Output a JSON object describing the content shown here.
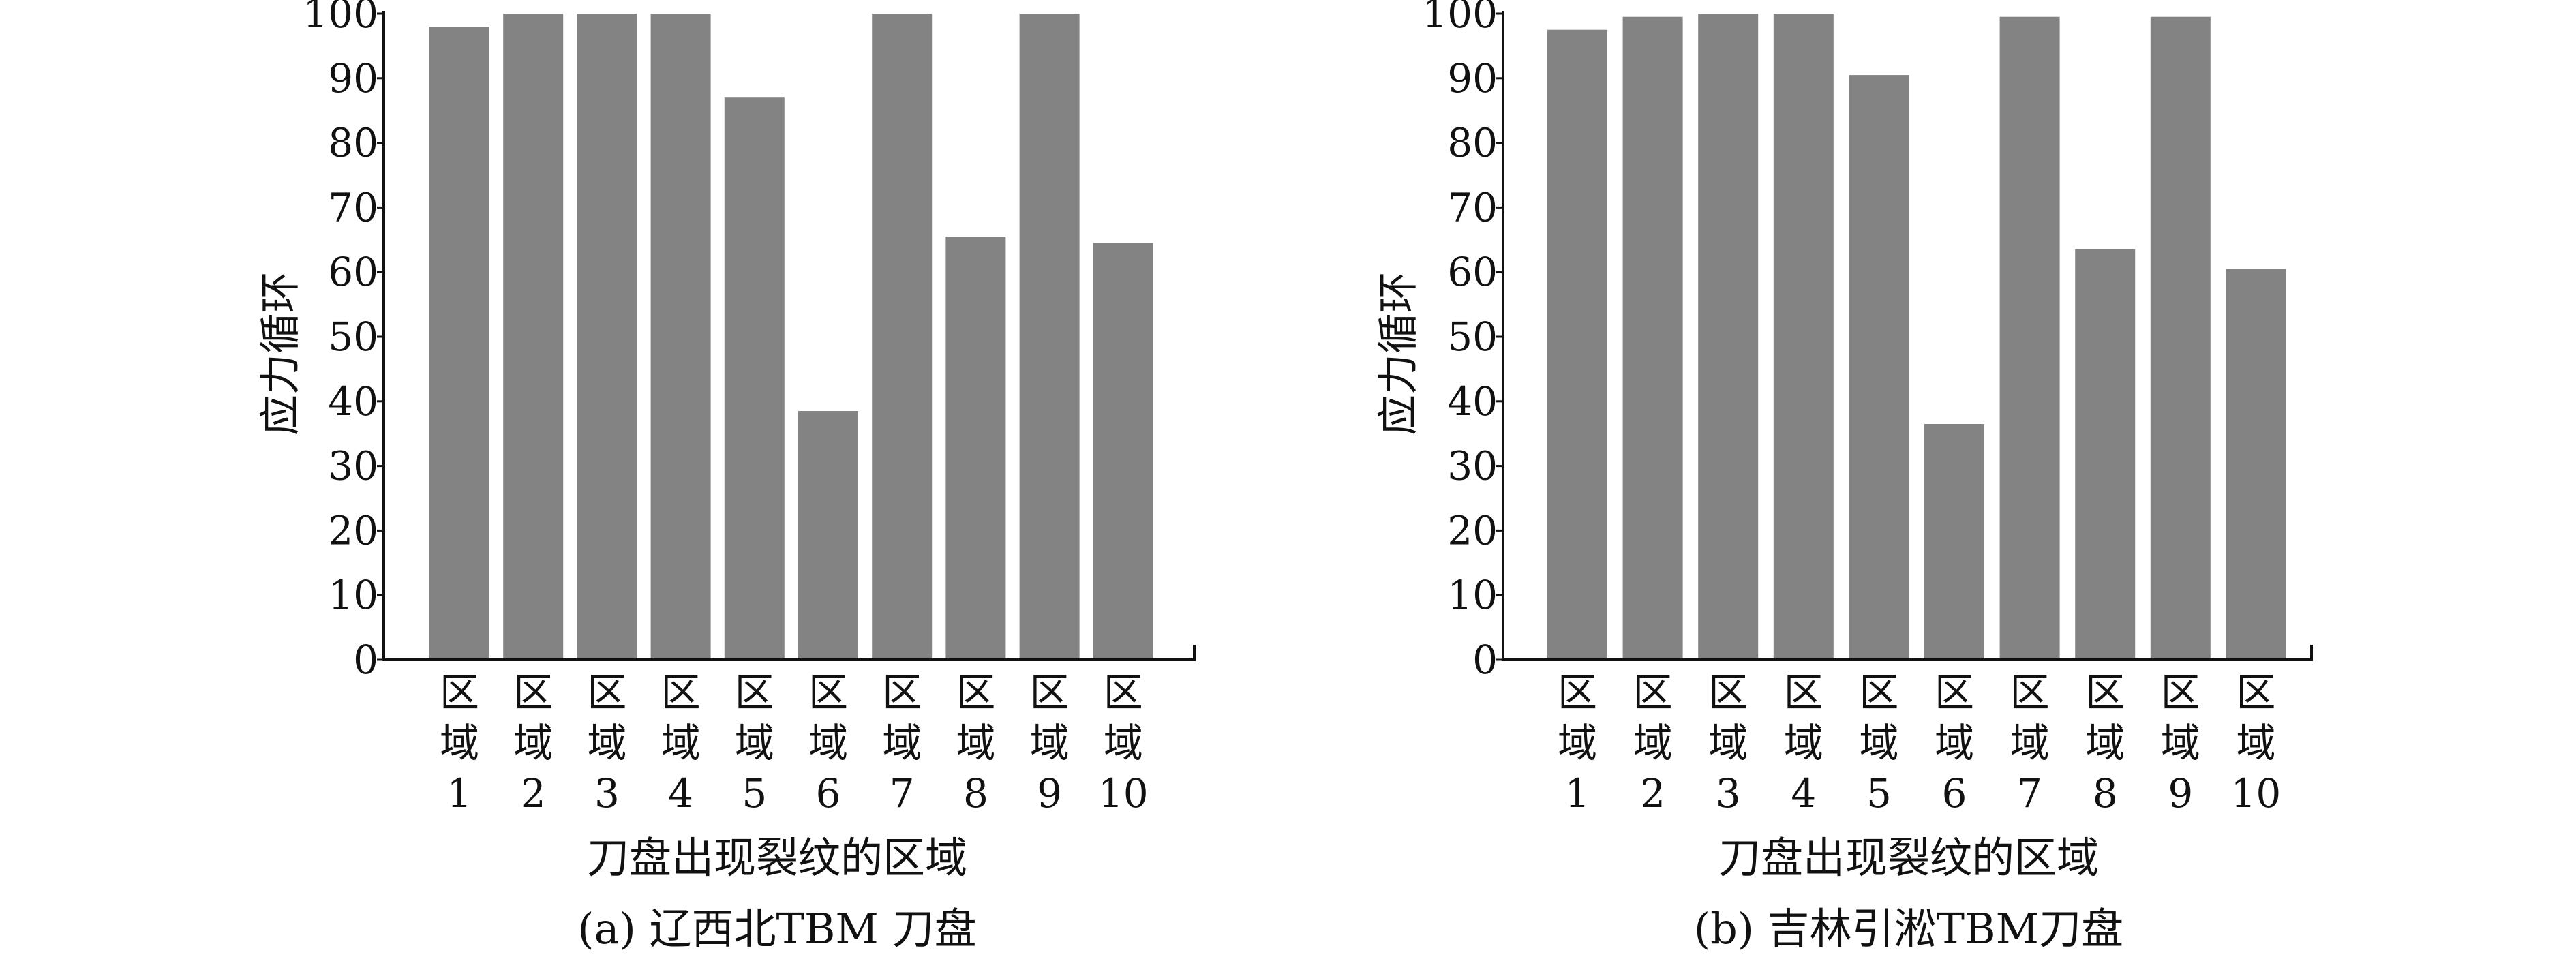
{
  "colors": {
    "bar": "#838383",
    "axis": "#111111",
    "text": "#111111",
    "background": "#ffffff"
  },
  "chart_data": [
    {
      "type": "bar",
      "categories": [
        [
          "区",
          "域",
          "1"
        ],
        [
          "区",
          "域",
          "2"
        ],
        [
          "区",
          "域",
          "3"
        ],
        [
          "区",
          "域",
          "4"
        ],
        [
          "区",
          "域",
          "5"
        ],
        [
          "区",
          "域",
          "6"
        ],
        [
          "区",
          "域",
          "7"
        ],
        [
          "区",
          "域",
          "8"
        ],
        [
          "区",
          "域",
          "9"
        ],
        [
          "区",
          "域",
          "10"
        ]
      ],
      "values": [
        98,
        100,
        100,
        100,
        87,
        38.5,
        100,
        65.5,
        100,
        64.5
      ],
      "caption": "(a) 辽西北TBM 刀盘",
      "xlabel": "刀盘出现裂纹的区域",
      "ylabel": "应力循环",
      "ylim": [
        0,
        100
      ],
      "yticks": [
        "0",
        "10",
        "20",
        "30",
        "40",
        "50",
        "60",
        "70",
        "80",
        "90",
        "100"
      ],
      "grid": false,
      "legend": "none"
    },
    {
      "type": "bar",
      "categories": [
        [
          "区",
          "域",
          "1"
        ],
        [
          "区",
          "域",
          "2"
        ],
        [
          "区",
          "域",
          "3"
        ],
        [
          "区",
          "域",
          "4"
        ],
        [
          "区",
          "域",
          "5"
        ],
        [
          "区",
          "域",
          "6"
        ],
        [
          "区",
          "域",
          "7"
        ],
        [
          "区",
          "域",
          "8"
        ],
        [
          "区",
          "域",
          "9"
        ],
        [
          "区",
          "域",
          "10"
        ]
      ],
      "values": [
        97.5,
        99.5,
        100,
        100,
        90.5,
        36.5,
        99.5,
        63.5,
        99.5,
        60.5
      ],
      "caption": "(b) 吉林引淞TBM刀盘",
      "xlabel": "刀盘出现裂纹的区域",
      "ylabel": "应力循环",
      "ylim": [
        0,
        100
      ],
      "yticks": [
        "0",
        "10",
        "20",
        "30",
        "40",
        "50",
        "60",
        "70",
        "80",
        "90",
        "100"
      ],
      "grid": false,
      "legend": "none"
    }
  ]
}
